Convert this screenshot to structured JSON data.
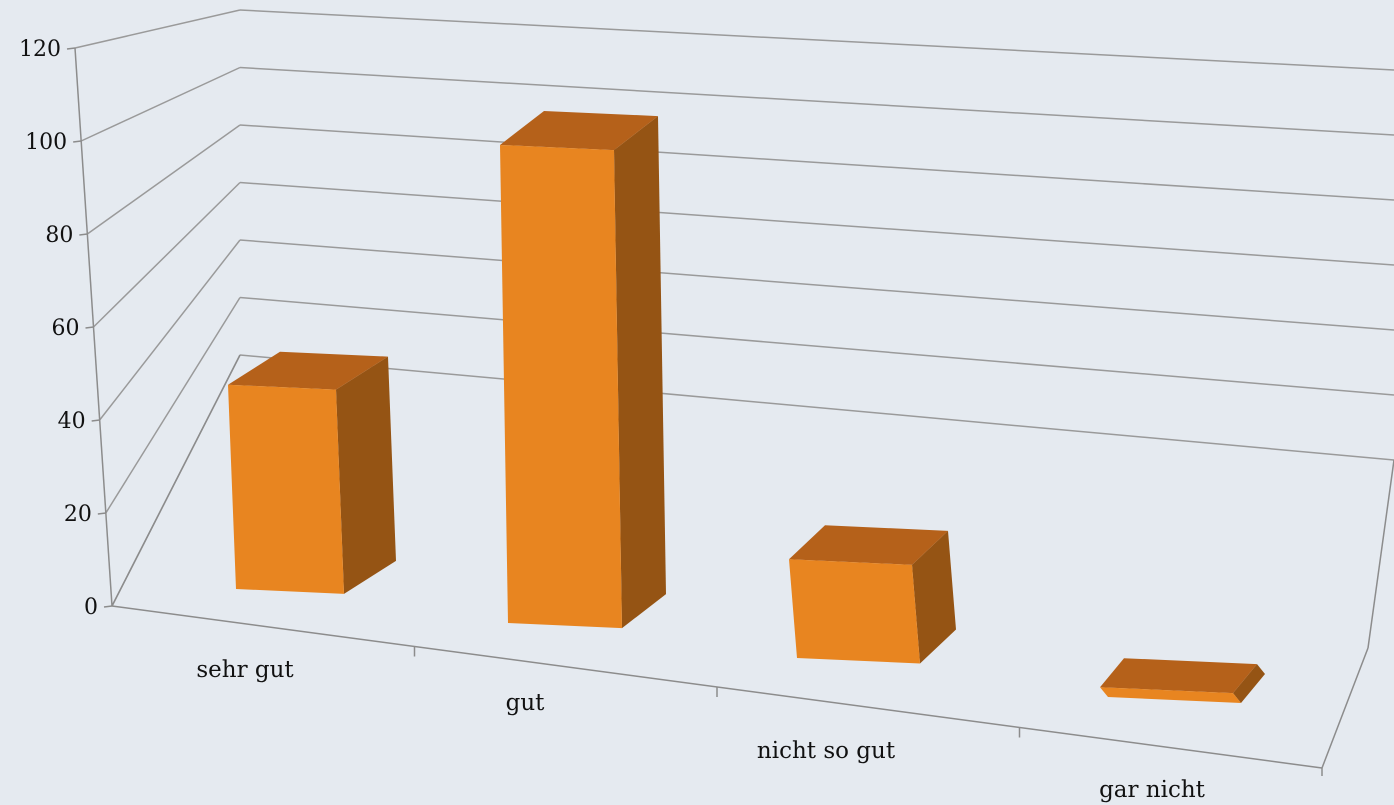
{
  "chart_data": {
    "type": "bar",
    "title": "",
    "xlabel": "",
    "ylabel": "",
    "categories": [
      "sehr gut",
      "gut",
      "nicht so gut",
      "gar nicht"
    ],
    "series": [
      {
        "values": [
          46,
          106,
          21,
          2
        ]
      }
    ],
    "ylim": [
      0,
      120
    ],
    "yticks": [
      0,
      20,
      40,
      60,
      80,
      100,
      120
    ],
    "ytick_labels": [
      "0",
      "20",
      "40",
      "60",
      "80",
      "100",
      "120"
    ],
    "grid": true,
    "legend": "none",
    "style": "3d-column",
    "colors": {
      "front": "#e88520",
      "side": "#955414",
      "top": "#b5611a",
      "background": "#e5eaf0",
      "gridline": "#9a9a9a"
    }
  }
}
